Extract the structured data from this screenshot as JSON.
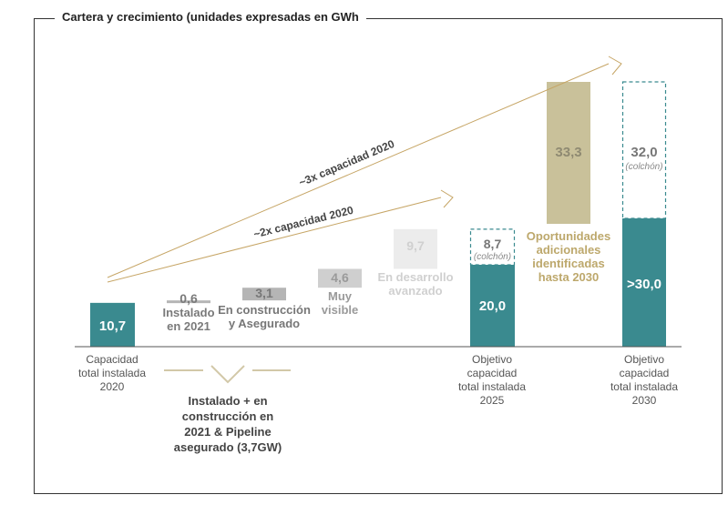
{
  "title": "Cartera y crecimiento (unidades expresadas en GWh",
  "colors": {
    "teal": "#3a8a8f",
    "gold": "#c9c19a",
    "gold_text": "#bda86c",
    "gray": "#9a9a9a",
    "light_gray": "#d8d8d8",
    "arrow": "#c6a565",
    "axis": "#555555"
  },
  "chart_data": {
    "type": "bar",
    "title": "Cartera y crecimiento (unidades expresadas en GWh",
    "ylim": [
      0,
      70
    ],
    "grid": false,
    "bars": [
      {
        "id": "installed-2020",
        "value": 10.7,
        "label": "10,7",
        "category": [
          "Capacidad",
          "total instalada",
          "2020"
        ],
        "style": "teal"
      },
      {
        "id": "installed-2021",
        "value": 0.6,
        "label": "0,6",
        "category": [
          "Instalado",
          "en 2021"
        ],
        "style": "gray"
      },
      {
        "id": "under-construction",
        "value": 3.1,
        "label": "3,1",
        "category": [
          "En construcción",
          "y Asegurado"
        ],
        "style": "gray"
      },
      {
        "id": "very-visible",
        "value": 4.6,
        "label": "4,6",
        "category": [
          "Muy",
          "visible"
        ],
        "style": "gray"
      },
      {
        "id": "advanced-dev",
        "value": 9.7,
        "label": "9,7",
        "category": [
          "En desarrollo",
          "avanzado"
        ],
        "style": "light"
      },
      {
        "id": "target-2025",
        "value": 20.0,
        "label": "20,0",
        "buffer": 8.7,
        "buffer_label": "8,7",
        "buffer_note": "(colchón)",
        "category": [
          "Objetivo",
          "capacidad",
          "total instalada",
          "2025"
        ],
        "style": "teal"
      },
      {
        "id": "additional-opportunities",
        "value": 33.3,
        "label": "33,3",
        "category": [
          "Oportunidades",
          "adicionales",
          "identificadas",
          "hasta 2030"
        ],
        "style": "gold"
      },
      {
        "id": "target-2030",
        "value": 30.0,
        "label": ">30,0",
        "buffer": 32.0,
        "buffer_label": "32,0",
        "buffer_note": "(colchón)",
        "category": [
          "Objetivo",
          "capacidad",
          "total instalada",
          "2030"
        ],
        "style": "teal"
      }
    ],
    "annotations": {
      "arrow_2x": "~2x capacidad 2020",
      "arrow_3x": "~3x capacidad 2020",
      "bracket": [
        "Instalado + en",
        "construcción en",
        "2021 & Pipeline",
        "asegurado (3,7GW)"
      ]
    }
  }
}
